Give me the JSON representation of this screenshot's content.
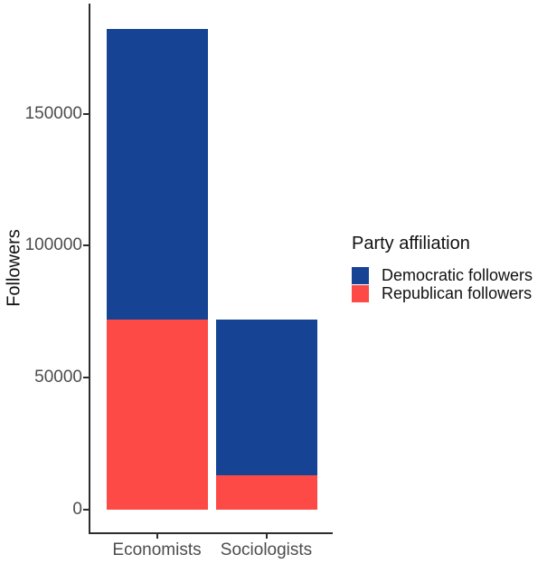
{
  "figure": {
    "background": "#ffffff",
    "axis_color": "#2d2d2d",
    "tick_label_color": "#4d4d4d"
  },
  "chart_data": {
    "type": "bar",
    "subtype": "stacked-vertical",
    "title": "",
    "xlabel": "",
    "ylabel": "Followers",
    "categories": [
      "Economists",
      "Sociologists"
    ],
    "series_bottom_to_top": [
      {
        "name": "Republican followers",
        "color": "#fd4a46",
        "values": [
          72000,
          13000
        ]
      },
      {
        "name": "Democratic followers",
        "color": "#164394",
        "values": [
          110000,
          59000
        ]
      }
    ],
    "stack_totals": [
      182000,
      72000
    ],
    "yticks": [
      0,
      50000,
      100000,
      150000
    ],
    "ytick_labels": [
      "0",
      "50000",
      "100000",
      "150000"
    ],
    "ylim": [
      0,
      191500
    ],
    "grid": false,
    "legend": {
      "title": "Party affiliation",
      "position": "right",
      "entries": [
        {
          "label": "Democratic followers",
          "color": "#164394"
        },
        {
          "label": "Republican followers",
          "color": "#fd4a46"
        }
      ]
    }
  }
}
